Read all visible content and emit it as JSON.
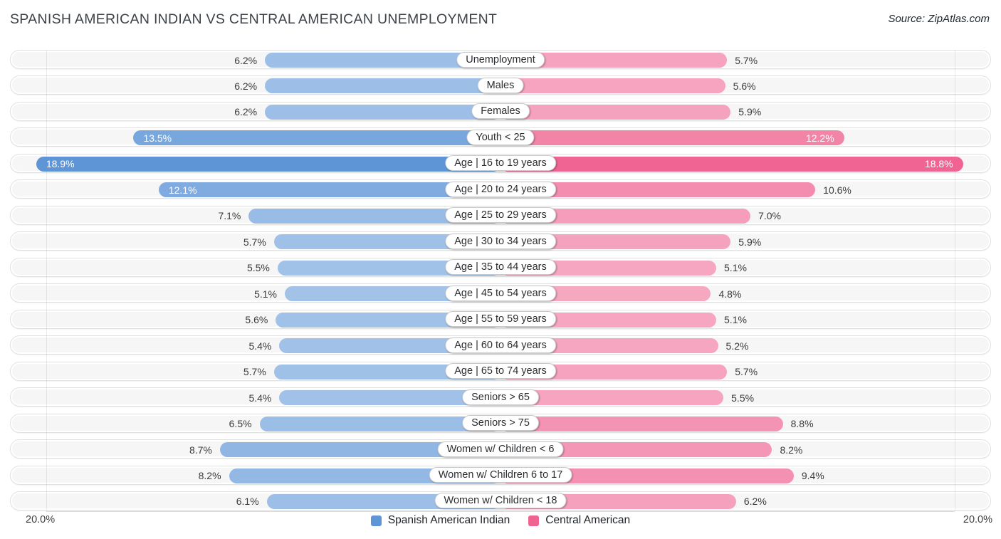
{
  "header": {
    "title": "SPANISH AMERICAN INDIAN VS CENTRAL AMERICAN UNEMPLOYMENT",
    "source": "Source: ZipAtlas.com"
  },
  "footer": {
    "axis_left": "20.0%",
    "axis_right": "20.0%"
  },
  "chart_data": {
    "type": "bar",
    "subtype": "tornado",
    "title": "SPANISH AMERICAN INDIAN VS CENTRAL AMERICAN UNEMPLOYMENT",
    "axis_max_percent": 20.0,
    "axis_tick_label": "20.0%",
    "legend_position": "bottom-center",
    "categories": [
      "Unemployment",
      "Males",
      "Females",
      "Youth < 25",
      "Age | 16 to 19 years",
      "Age | 20 to 24 years",
      "Age | 25 to 29 years",
      "Age | 30 to 34 years",
      "Age | 35 to 44 years",
      "Age | 45 to 54 years",
      "Age | 55 to 59 years",
      "Age | 60 to 64 years",
      "Age | 65 to 74 years",
      "Seniors > 65",
      "Seniors > 75",
      "Women w/ Children < 6",
      "Women w/ Children 6 to 17",
      "Women w/ Children < 18"
    ],
    "series": [
      {
        "name": "Spanish American Indian",
        "side": "left",
        "color": "#4082d0",
        "values": [
          6.2,
          6.2,
          6.2,
          13.5,
          18.9,
          12.1,
          7.1,
          5.7,
          5.5,
          5.1,
          5.6,
          5.4,
          5.7,
          5.4,
          6.5,
          8.7,
          8.2,
          6.1
        ]
      },
      {
        "name": "Central American",
        "side": "right",
        "color": "#ec487e",
        "values": [
          5.7,
          5.6,
          5.9,
          12.2,
          18.8,
          10.6,
          7.0,
          5.9,
          5.1,
          4.8,
          5.1,
          5.2,
          5.7,
          5.5,
          8.8,
          8.2,
          9.4,
          6.2
        ]
      }
    ]
  }
}
